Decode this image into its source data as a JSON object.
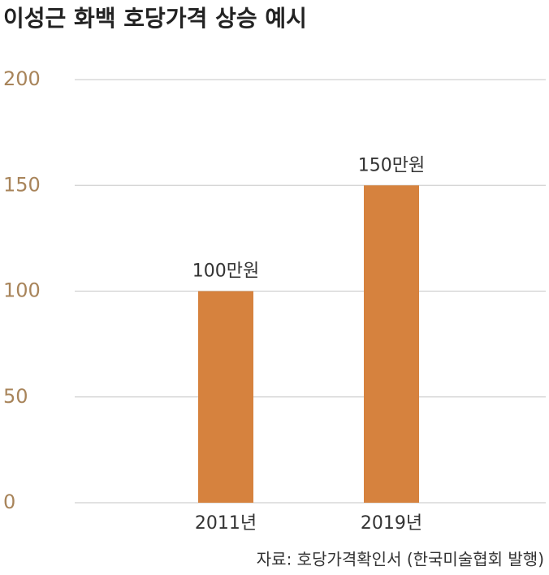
{
  "chart_data": {
    "type": "bar",
    "title": "이성근 화백 호당가격 상승 예시",
    "categories": [
      "2011년",
      "2019년"
    ],
    "values": [
      100,
      150
    ],
    "value_labels": [
      "100만원",
      "150만원"
    ],
    "color": "#d6823e",
    "ylim": [
      0,
      200
    ],
    "yticks": [
      0,
      50,
      100,
      150,
      200
    ],
    "grid": true,
    "source": "자료: 호당가격확인서 (한국미술협회 발행)"
  }
}
